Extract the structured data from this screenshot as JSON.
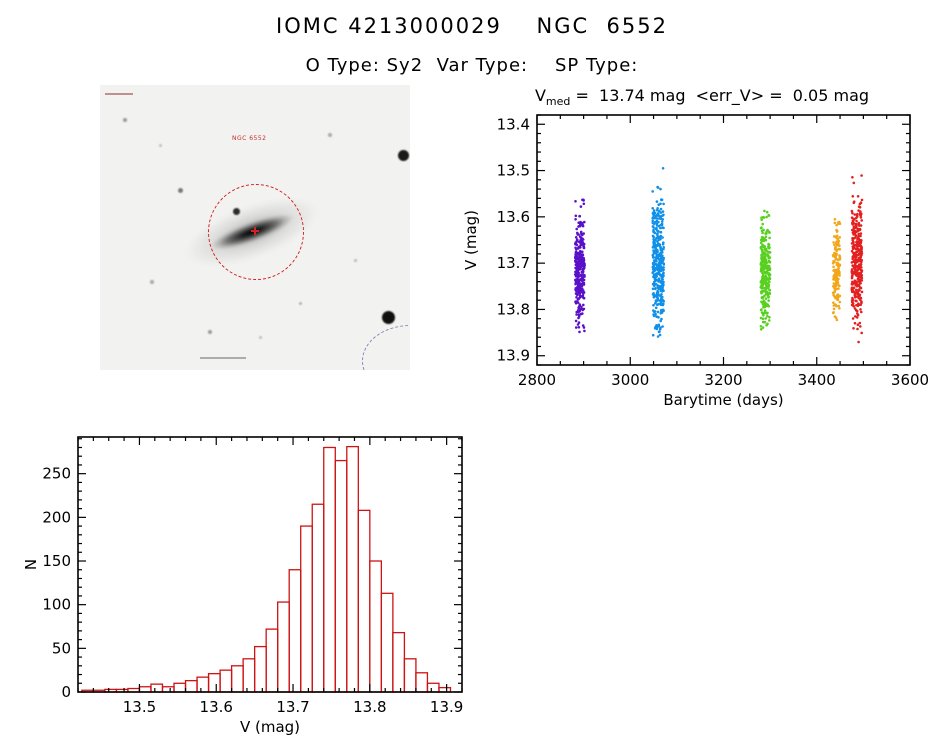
{
  "header": {
    "title": "IOMC 4213000029    NGC  6552",
    "subtitle": "O Type: Sy2  Var Type:    SP Type:"
  },
  "sky_image": {
    "label": "NGC 6552",
    "aperture_color": "#d22323"
  },
  "chart_data": [
    {
      "id": "lightcurve",
      "type": "scatter",
      "title": {
        "v": "V",
        "sub": "med",
        "rest": " =  13.74 mag  <err_V> =  0.05 mag"
      },
      "xlabel": "Barytime (days)",
      "ylabel": "V (mag)",
      "xlim": [
        2800,
        3600
      ],
      "ylim_bottom_top": [
        13.92,
        13.38
      ],
      "xticks": [
        2800,
        3000,
        3200,
        3400,
        3600
      ],
      "xtick_labels": [
        "2800",
        "3000",
        "3200",
        "3400",
        "3600"
      ],
      "x_minor": 50,
      "yticks": [
        13.4,
        13.5,
        13.6,
        13.7,
        13.8,
        13.9
      ],
      "ytick_labels": [
        "13.4",
        "13.5",
        "13.6",
        "13.7",
        "13.8",
        "13.9"
      ],
      "y_minor": 0.02,
      "grid": false,
      "legend": "none",
      "clusters": [
        {
          "name": "epoch-1",
          "color": "#5a10c8",
          "x_min": 2882,
          "x_max": 2902,
          "v_mean": 13.715,
          "v_sigma": 0.06,
          "v_min": 13.5,
          "v_max": 13.86,
          "n": 320
        },
        {
          "name": "epoch-2",
          "color": "#1090e8",
          "x_min": 3048,
          "x_max": 3072,
          "v_mean": 13.7,
          "v_sigma": 0.075,
          "v_min": 13.42,
          "v_max": 13.86,
          "n": 400
        },
        {
          "name": "epoch-3",
          "color": "#58d020",
          "x_min": 3280,
          "x_max": 3300,
          "v_mean": 13.72,
          "v_sigma": 0.055,
          "v_min": 13.56,
          "v_max": 13.85,
          "n": 280
        },
        {
          "name": "epoch-4",
          "color": "#f2a71b",
          "x_min": 3435,
          "x_max": 3450,
          "v_mean": 13.72,
          "v_sigma": 0.05,
          "v_min": 13.56,
          "v_max": 13.83,
          "n": 160
        },
        {
          "name": "epoch-5",
          "color": "#e32020",
          "x_min": 3475,
          "x_max": 3497,
          "v_mean": 13.7,
          "v_sigma": 0.065,
          "v_min": 13.45,
          "v_max": 13.88,
          "n": 340
        }
      ]
    },
    {
      "id": "histogram",
      "type": "bar",
      "xlabel": "V (mag)",
      "ylabel": "N",
      "xlim": [
        13.42,
        13.92
      ],
      "ylim_bottom_top": [
        0,
        292
      ],
      "xticks": [
        13.5,
        13.6,
        13.7,
        13.8,
        13.9
      ],
      "xtick_labels": [
        "13.5",
        "13.6",
        "13.7",
        "13.8",
        "13.9"
      ],
      "x_minor": 0.02,
      "yticks": [
        0,
        50,
        100,
        150,
        200,
        250
      ],
      "ytick_labels": [
        "0",
        "50",
        "100",
        "150",
        "200",
        "250"
      ],
      "y_minor": 10,
      "grid": false,
      "bar_color": "#cc1414",
      "bin_start": 13.425,
      "bin_width": 0.015,
      "counts": [
        2,
        2,
        3,
        3,
        4,
        6,
        9,
        6,
        10,
        13,
        17,
        21,
        25,
        30,
        38,
        52,
        72,
        103,
        140,
        190,
        215,
        280,
        265,
        281,
        208,
        150,
        113,
        68,
        38,
        22,
        10,
        5
      ]
    }
  ]
}
